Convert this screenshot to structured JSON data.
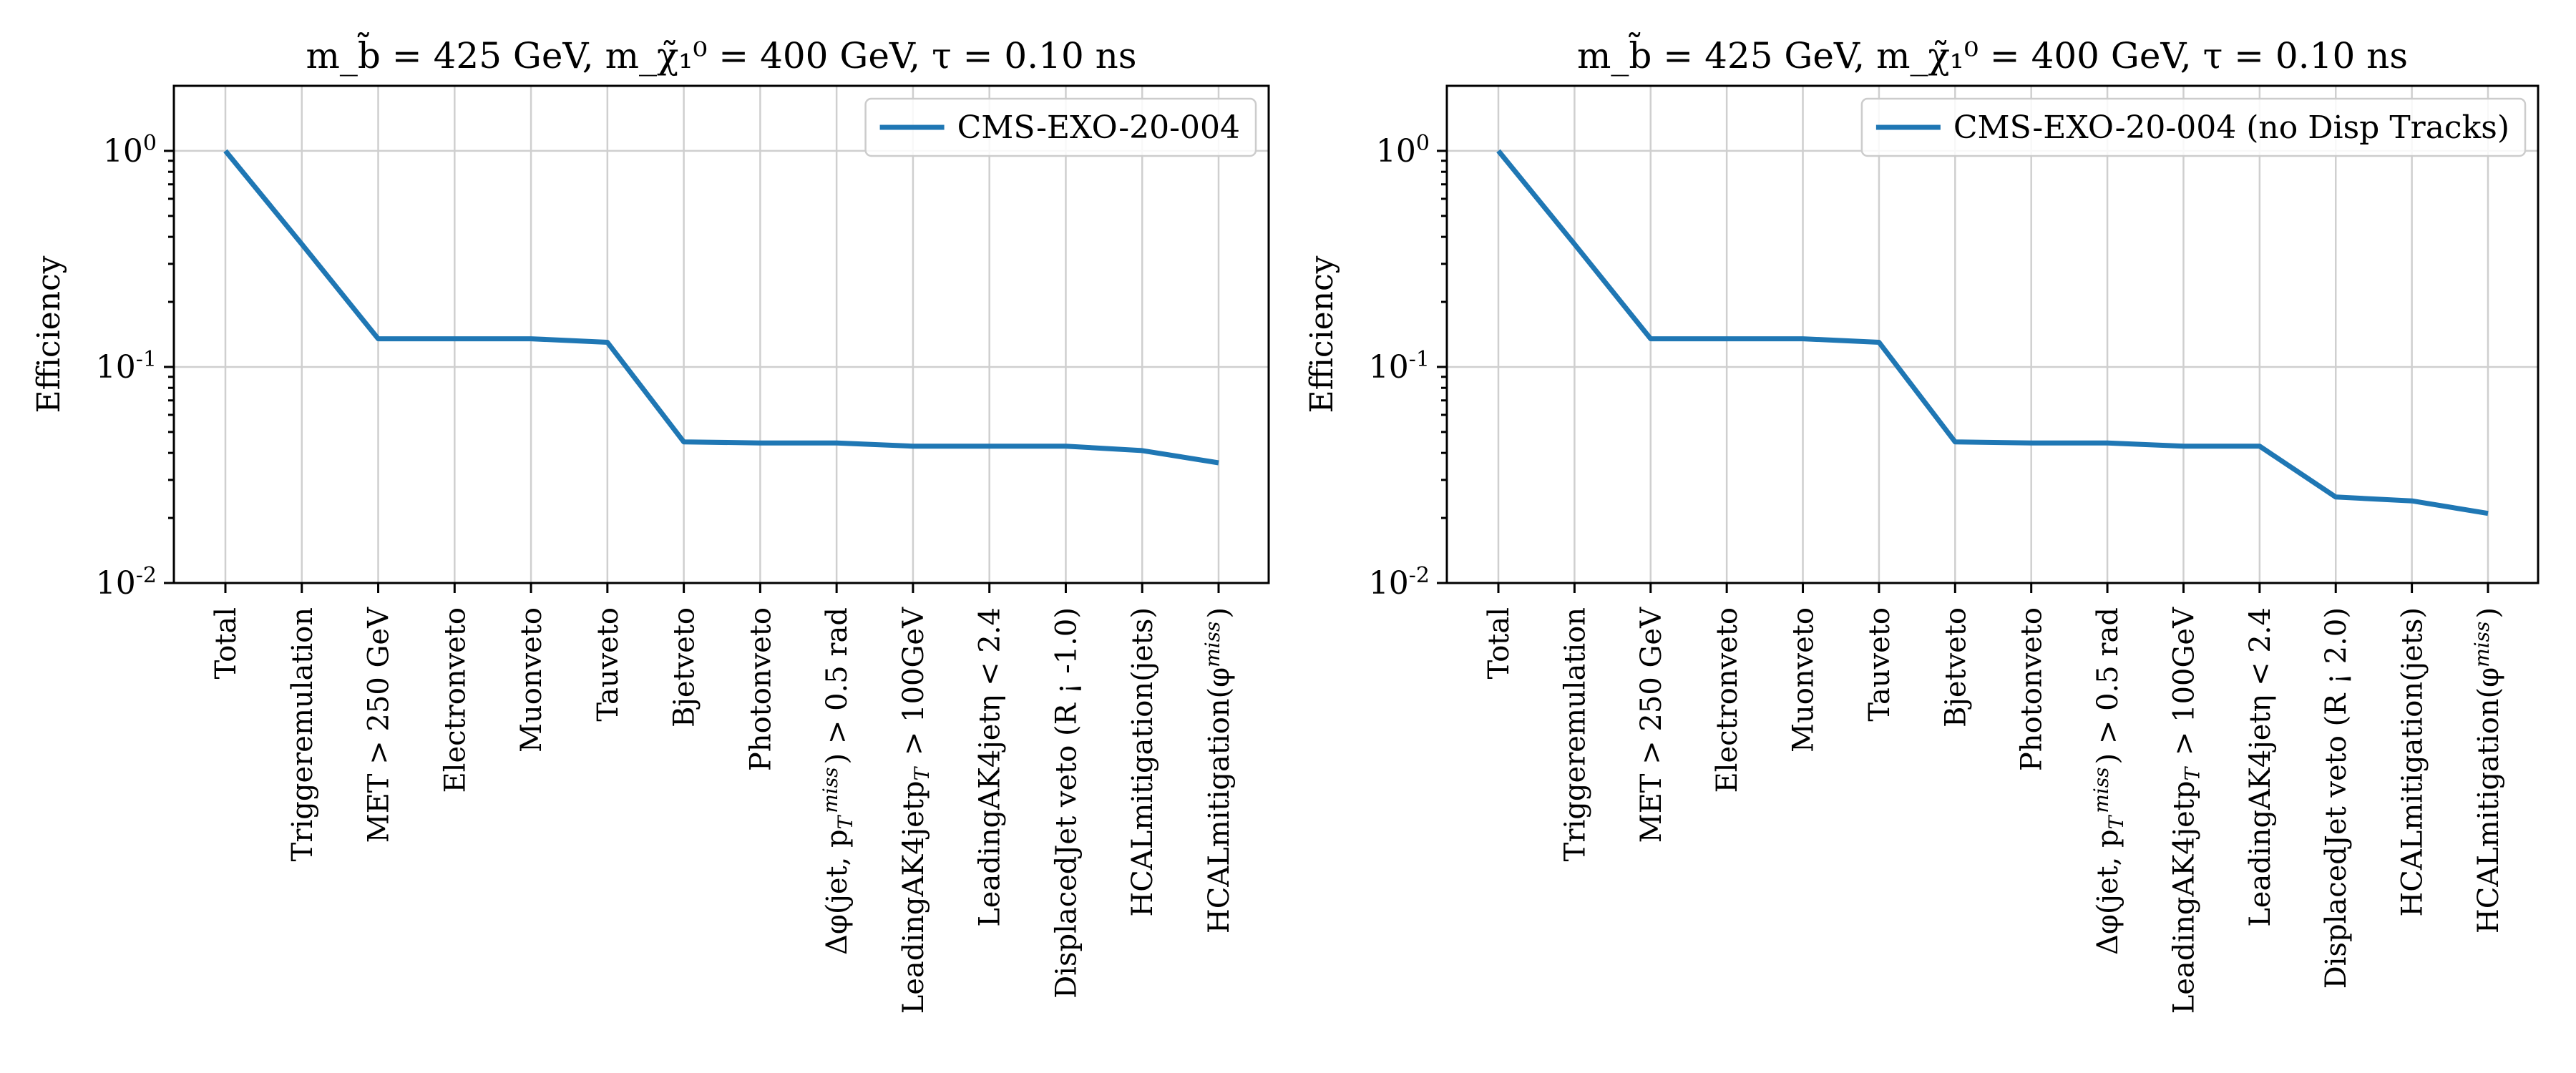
{
  "chart_data": [
    {
      "type": "line",
      "title": "m_b̃ = 425 GeV, m_χ̃₁⁰ = 400 GeV, τ = 0.10 ns",
      "ylabel": "Efficiency",
      "xlabel": "",
      "yscale": "log",
      "ylim": [
        0.01,
        2.0
      ],
      "yticks": [
        "10^0",
        "10^-1",
        "10^-2"
      ],
      "grid": true,
      "legend_position": "top-right",
      "categories": [
        "Total",
        "Triggeremulation",
        "MET > 250 GeV",
        "Electronveto",
        "Muonveto",
        "Tauveto",
        "Bjetveto",
        "Photonveto",
        "Δφ(jet, p_T^miss) > 0.5 rad",
        "LeadingAK4jetp_T > 100GeV",
        "LeadingAK4jetη < 2.4",
        "DisplacedJet veto (R ¡ -1.0)",
        "HCALmitigation(jets)",
        "HCALmitigation(φ^miss)"
      ],
      "series": [
        {
          "name": "CMS-EXO-20-004",
          "color": "#1f77b4",
          "values": [
            1.0,
            0.37,
            0.135,
            0.135,
            0.135,
            0.13,
            0.045,
            0.0445,
            0.0445,
            0.043,
            0.043,
            0.043,
            0.041,
            0.036
          ]
        }
      ]
    },
    {
      "type": "line",
      "title": "m_b̃ = 425 GeV, m_χ̃₁⁰ = 400 GeV, τ = 0.10 ns",
      "ylabel": "Efficiency",
      "xlabel": "",
      "yscale": "log",
      "ylim": [
        0.01,
        2.0
      ],
      "yticks": [
        "10^0",
        "10^-1",
        "10^-2"
      ],
      "grid": true,
      "legend_position": "top-right",
      "categories": [
        "Total",
        "Triggeremulation",
        "MET > 250 GeV",
        "Electronveto",
        "Muonveto",
        "Tauveto",
        "Bjetveto",
        "Photonveto",
        "Δφ(jet, p_T^miss) > 0.5 rad",
        "LeadingAK4jetp_T > 100GeV",
        "LeadingAK4jetη < 2.4",
        "DisplacedJet veto (R ¡ 2.0)",
        "HCALmitigation(jets)",
        "HCALmitigation(φ^miss)"
      ],
      "series": [
        {
          "name": "CMS-EXO-20-004 (no Disp Tracks)",
          "color": "#1f77b4",
          "values": [
            1.0,
            0.37,
            0.135,
            0.135,
            0.135,
            0.13,
            0.045,
            0.0445,
            0.0445,
            0.043,
            0.043,
            0.025,
            0.024,
            0.021
          ]
        }
      ]
    }
  ]
}
